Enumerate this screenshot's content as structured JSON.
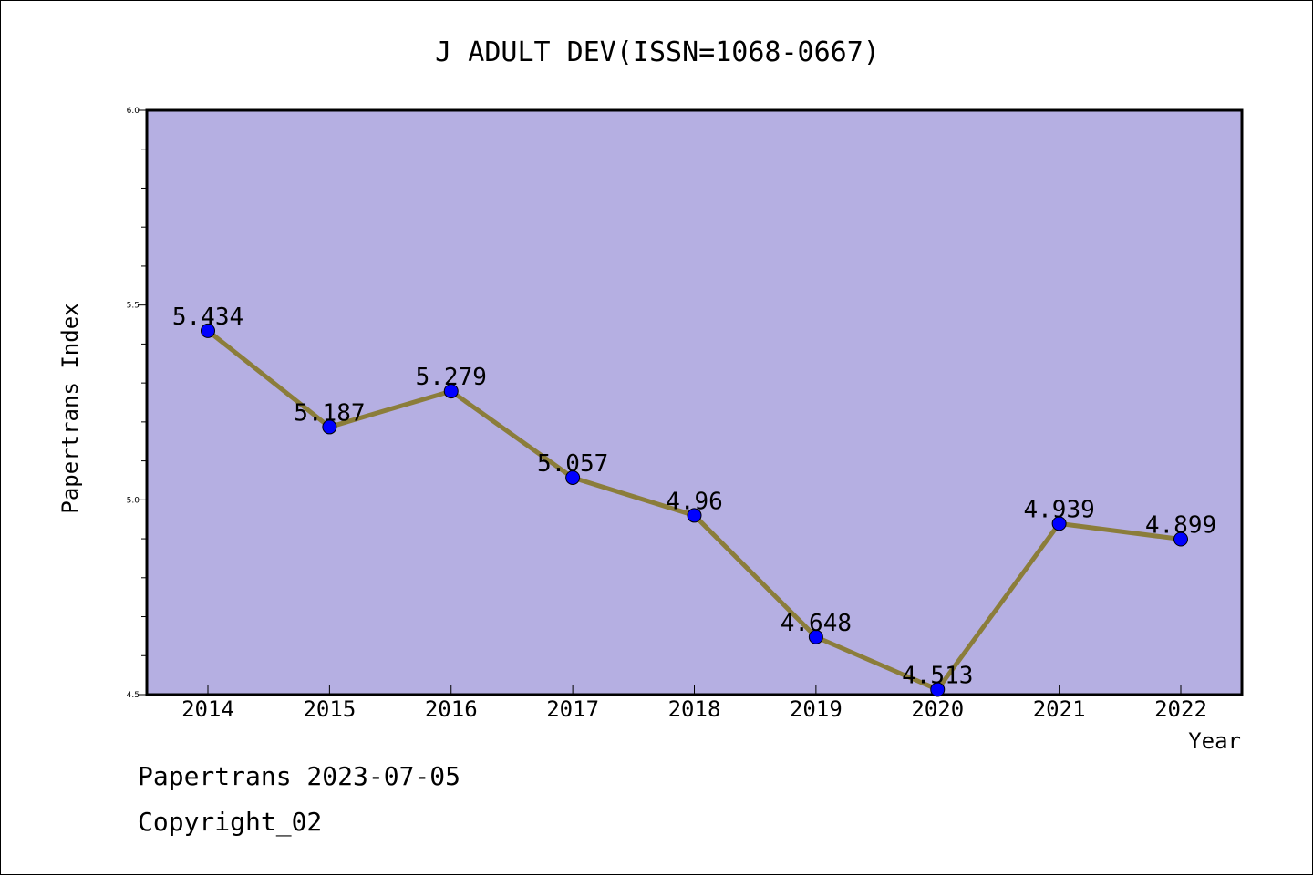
{
  "chart_data": {
    "type": "line",
    "title": "J ADULT DEV(ISSN=1068-0667)",
    "xlabel": "Year",
    "ylabel": "Papertrans Index",
    "categories": [
      "2014",
      "2015",
      "2016",
      "2017",
      "2018",
      "2019",
      "2020",
      "2021",
      "2022"
    ],
    "series": [
      {
        "values": [
          5.434,
          5.187,
          5.279,
          5.057,
          4.96,
          4.648,
          4.513,
          4.939,
          4.899
        ],
        "labels": [
          "5.434",
          "5.187",
          "5.279",
          "5.057",
          "4.96",
          "4.648",
          "4.513",
          "4.939",
          "4.899"
        ],
        "line_color": "#8b7d3a",
        "marker_color": "#0000ff"
      }
    ],
    "ylim": [
      4.5,
      6.0
    ],
    "yticks": [
      "4.5",
      "5.0",
      "5.5",
      "6.0"
    ],
    "plot_background": "#b5afe2",
    "grid": false,
    "legend": "none"
  },
  "footer": {
    "line1": "Papertrans 2023-07-05",
    "line2": "Copyright_02"
  }
}
